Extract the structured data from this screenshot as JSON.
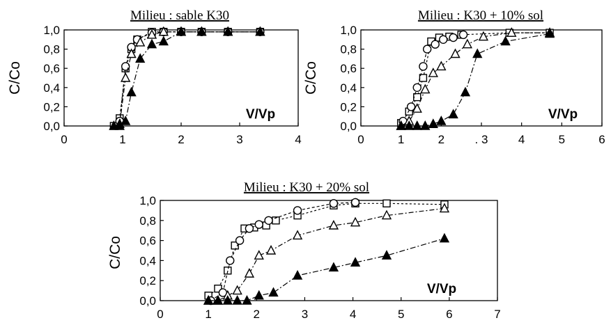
{
  "chart_data": [
    {
      "type": "scatter",
      "title": "Milieu : sable K30",
      "xlabel": "V/Vp",
      "ylabel": "C/Co",
      "xlim": [
        0,
        4
      ],
      "ylim": [
        0,
        1
      ],
      "x_ticks": [
        "0",
        "1",
        "2",
        "3",
        "4"
      ],
      "y_ticks": [
        "0,0",
        "0,2",
        "0,4",
        "0,6",
        "0,8",
        "1,0"
      ],
      "grid": false,
      "series": [
        {
          "marker": "open-square",
          "filled": false,
          "x": [
            0.85,
            0.95,
            1.05,
            1.15,
            1.25,
            1.5,
            1.7,
            2.0,
            2.35,
            2.8,
            3.35
          ],
          "y": [
            0.0,
            0.08,
            0.6,
            0.8,
            0.9,
            0.98,
            0.98,
            0.98,
            0.98,
            0.98,
            0.98
          ]
        },
        {
          "marker": "open-circle",
          "filled": false,
          "x": [
            0.95,
            1.05,
            1.15,
            1.25,
            1.5,
            1.7,
            2.0,
            2.35,
            2.8,
            3.35
          ],
          "y": [
            0.05,
            0.62,
            0.82,
            0.9,
            0.97,
            0.98,
            0.98,
            0.98,
            0.98,
            0.98
          ]
        },
        {
          "marker": "open-triangle",
          "filled": false,
          "x": [
            0.95,
            1.05,
            1.15,
            1.3,
            1.5,
            1.7,
            2.0,
            2.35,
            2.8,
            3.35
          ],
          "y": [
            0.02,
            0.5,
            0.75,
            0.87,
            0.95,
            0.98,
            0.98,
            0.98,
            0.98,
            0.98
          ]
        },
        {
          "marker": "filled-triangle",
          "filled": true,
          "x": [
            0.85,
            0.95,
            1.05,
            1.15,
            1.3,
            1.5,
            1.7,
            2.0,
            2.35,
            2.8,
            3.35
          ],
          "y": [
            0.0,
            0.0,
            0.05,
            0.35,
            0.7,
            0.85,
            0.88,
            0.98,
            0.98,
            0.98,
            0.98
          ]
        }
      ]
    },
    {
      "type": "scatter",
      "title": "Milieu : K30 + 10% sol",
      "xlabel": "V/Vp",
      "ylabel": "C/Co",
      "xlim": [
        0,
        6
      ],
      "ylim": [
        0,
        1
      ],
      "x_ticks": [
        "0",
        "1",
        "2",
        ". 3",
        "4",
        "5",
        "6"
      ],
      "y_ticks": [
        "0,0",
        "0,2",
        "0,4",
        "0,6",
        "0,8",
        "1,0"
      ],
      "grid": false,
      "series": [
        {
          "marker": "open-square",
          "filled": false,
          "x": [
            1.0,
            1.2,
            1.4,
            1.55,
            1.75,
            1.95,
            2.2,
            2.5,
            3.7,
            4.7
          ],
          "y": [
            0.03,
            0.15,
            0.3,
            0.5,
            0.88,
            0.92,
            0.93,
            0.95,
            0.97,
            0.97
          ]
        },
        {
          "marker": "open-circle",
          "filled": false,
          "x": [
            1.05,
            1.25,
            1.4,
            1.55,
            1.65,
            1.85,
            2.05,
            2.3,
            2.55
          ],
          "y": [
            0.05,
            0.2,
            0.4,
            0.62,
            0.8,
            0.85,
            0.9,
            0.92,
            0.95
          ]
        },
        {
          "marker": "open-triangle",
          "filled": false,
          "x": [
            1.0,
            1.2,
            1.4,
            1.6,
            1.8,
            2.0,
            2.35,
            2.65,
            3.05,
            3.75,
            4.7
          ],
          "y": [
            0.0,
            0.05,
            0.18,
            0.38,
            0.55,
            0.62,
            0.75,
            0.85,
            0.93,
            0.97,
            0.97
          ]
        },
        {
          "marker": "filled-triangle",
          "filled": true,
          "x": [
            1.0,
            1.2,
            1.4,
            1.6,
            1.8,
            2.0,
            2.3,
            2.6,
            2.9,
            3.6,
            4.7
          ],
          "y": [
            0.0,
            0.0,
            0.0,
            0.0,
            0.02,
            0.05,
            0.12,
            0.35,
            0.75,
            0.88,
            0.96
          ]
        }
      ]
    },
    {
      "type": "scatter",
      "title": "Milieu : K30 + 20% sol",
      "xlabel": "V/Vp",
      "ylabel": "C/Co",
      "xlim": [
        0,
        7
      ],
      "ylim": [
        0,
        1
      ],
      "x_ticks": [
        "0",
        "1",
        "2",
        "3",
        "4",
        "5",
        "6",
        "7"
      ],
      "y_ticks": [
        "0,0",
        "0,2",
        "0,4",
        "0,6",
        "0,8",
        "1,0"
      ],
      "grid": false,
      "series": [
        {
          "marker": "open-square",
          "filled": false,
          "x": [
            1.0,
            1.2,
            1.4,
            1.55,
            1.75,
            1.95,
            2.2,
            2.4,
            2.85,
            3.6,
            4.05,
            4.7,
            5.9
          ],
          "y": [
            0.05,
            0.12,
            0.3,
            0.55,
            0.72,
            0.73,
            0.75,
            0.8,
            0.85,
            0.95,
            0.97,
            0.97,
            0.96
          ]
        },
        {
          "marker": "open-circle",
          "filled": false,
          "x": [
            1.05,
            1.3,
            1.45,
            1.65,
            1.85,
            2.05,
            2.25,
            2.85,
            3.6,
            4.05
          ],
          "y": [
            0.0,
            0.08,
            0.4,
            0.6,
            0.72,
            0.76,
            0.8,
            0.9,
            0.97,
            0.98
          ]
        },
        {
          "marker": "open-triangle",
          "filled": false,
          "x": [
            1.0,
            1.2,
            1.4,
            1.6,
            1.85,
            2.05,
            2.3,
            2.85,
            3.6,
            4.05,
            4.7,
            5.9
          ],
          "y": [
            0.0,
            0.0,
            0.05,
            0.1,
            0.27,
            0.45,
            0.5,
            0.65,
            0.75,
            0.78,
            0.85,
            0.92
          ]
        },
        {
          "marker": "filled-triangle",
          "filled": true,
          "x": [
            1.0,
            1.2,
            1.4,
            1.6,
            1.8,
            2.05,
            2.35,
            2.85,
            3.6,
            4.05,
            4.7,
            5.9
          ],
          "y": [
            0.0,
            0.0,
            0.0,
            0.0,
            0.0,
            0.05,
            0.08,
            0.25,
            0.33,
            0.38,
            0.45,
            0.62
          ]
        }
      ]
    }
  ]
}
